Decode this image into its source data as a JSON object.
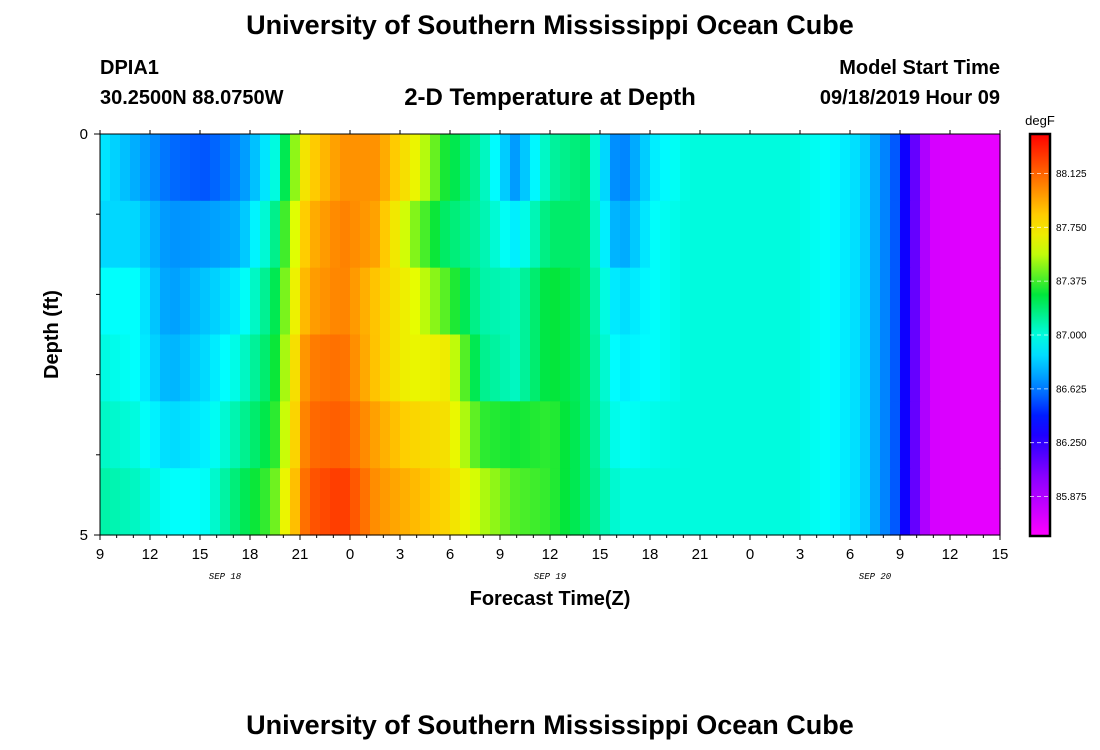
{
  "header": {
    "title": "University of Southern Mississippi Ocean Cube",
    "station": "DPIA1",
    "coords": "30.2500N 88.0750W",
    "subtitle": "2-D Temperature at Depth",
    "model_start_label": "Model Start Time",
    "model_start_value": "09/18/2019 Hour 09"
  },
  "footer": {
    "title": "University of Southern Mississippi Ocean Cube"
  },
  "chart_data": {
    "type": "heatmap",
    "title": "2-D Temperature at Depth",
    "xlabel": "Forecast Time(Z)",
    "ylabel": "Depth (ft)",
    "x_tick_labels": [
      "9",
      "12",
      "15",
      "18",
      "21",
      "0",
      "3",
      "6",
      "9",
      "12",
      "15",
      "18",
      "21",
      "0",
      "3",
      "6",
      "9",
      "12",
      "15"
    ],
    "date_labels": [
      {
        "label": "SEP 18",
        "index": 2.5
      },
      {
        "label": "SEP 19",
        "index": 9
      },
      {
        "label": "SEP 20",
        "index": 15.5
      }
    ],
    "y_tick_labels": [
      "0",
      "5"
    ],
    "ylim": [
      0,
      5
    ],
    "xlim_hours": [
      0,
      54
    ],
    "colorbar": {
      "unit": "degF",
      "vmin": 85.6,
      "vmax": 88.4,
      "tick_values": [
        85.875,
        86.25,
        86.625,
        87.0,
        87.375,
        87.75,
        88.125
      ],
      "tick_labels": [
        "85.875",
        "86.250",
        "86.625",
        "87.000",
        "87.375",
        "87.750",
        "88.125"
      ]
    },
    "depth_rows_top_to_bottom": [
      [
        86.9,
        86.75,
        86.6,
        86.55,
        86.65,
        86.95,
        87.8,
        88.0,
        88.0,
        87.7,
        87.3,
        87.1,
        86.7,
        87.1,
        87.2,
        86.6,
        86.9,
        87.0,
        87.0,
        87.0,
        87.0,
        86.95,
        86.85,
        86.55,
        85.75,
        85.7,
        85.68
      ],
      [
        86.85,
        86.85,
        86.68,
        86.7,
        86.75,
        87.1,
        87.9,
        88.05,
        87.95,
        87.5,
        87.2,
        87.1,
        86.9,
        87.2,
        87.2,
        86.7,
        86.95,
        87.0,
        87.0,
        87.0,
        87.0,
        86.95,
        86.85,
        86.55,
        85.75,
        85.7,
        85.68
      ],
      [
        86.95,
        86.95,
        86.7,
        86.8,
        86.9,
        87.2,
        87.95,
        88.05,
        87.85,
        87.65,
        87.4,
        87.1,
        87.05,
        87.3,
        87.2,
        86.85,
        86.95,
        87.0,
        87.0,
        87.0,
        87.0,
        86.95,
        86.85,
        86.55,
        85.75,
        85.7,
        85.68
      ],
      [
        87.0,
        86.95,
        86.75,
        86.85,
        87.0,
        87.25,
        88.05,
        88.1,
        87.85,
        87.65,
        87.7,
        87.15,
        87.05,
        87.3,
        87.2,
        86.9,
        86.95,
        87.0,
        87.0,
        87.0,
        87.0,
        86.95,
        86.85,
        86.55,
        85.75,
        85.7,
        85.68
      ],
      [
        87.05,
        87.0,
        86.85,
        86.9,
        87.1,
        87.3,
        88.1,
        88.15,
        87.95,
        87.8,
        87.75,
        87.35,
        87.3,
        87.35,
        87.2,
        86.95,
        86.98,
        87.0,
        87.0,
        87.0,
        87.0,
        86.95,
        86.85,
        86.55,
        85.75,
        85.7,
        85.68
      ],
      [
        87.1,
        87.05,
        86.95,
        86.95,
        87.2,
        87.4,
        88.15,
        88.25,
        88.0,
        87.9,
        87.8,
        87.55,
        87.4,
        87.35,
        87.2,
        87.0,
        87.0,
        87.0,
        87.0,
        87.0,
        87.0,
        86.95,
        86.85,
        86.55,
        85.75,
        85.7,
        85.68
      ]
    ]
  }
}
